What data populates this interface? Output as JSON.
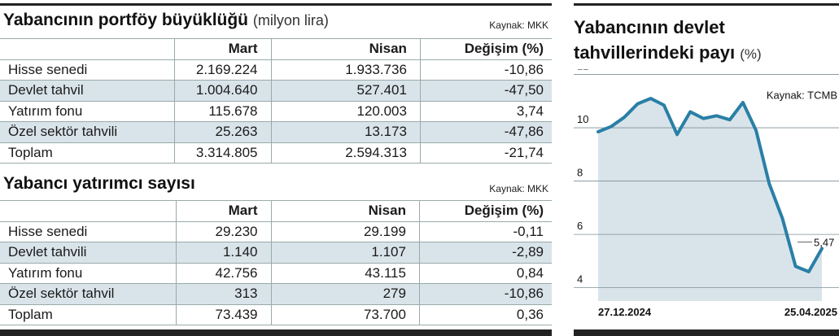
{
  "table1": {
    "title": "Yabancının portföy büyüklüğü",
    "subtitle": "(milyon lira)",
    "source": "Kaynak: MKK",
    "headers": [
      "",
      "Mart",
      "Nisan",
      "Değişim (%)"
    ],
    "rows": [
      [
        "Hisse senedi",
        "2.169.224",
        "1.933.736",
        "-10,86"
      ],
      [
        "Devlet tahvil",
        "1.004.640",
        "527.401",
        "-47,50"
      ],
      [
        "Yatırım fonu",
        "115.678",
        "120.003",
        "3,74"
      ],
      [
        "Özel sektör tahvili",
        "25.263",
        "13.173",
        "-47,86"
      ],
      [
        "Toplam",
        "3.314.805",
        "2.594.313",
        "-21,74"
      ]
    ]
  },
  "table2": {
    "title": "Yabancı yatırımcı sayısı",
    "source": "Kaynak: MKK",
    "headers": [
      "",
      "Mart",
      "Nisan",
      "Değişim (%)"
    ],
    "rows": [
      [
        "Hisse senedi",
        "29.230",
        "29.199",
        "-0,11"
      ],
      [
        "Devlet tahvili",
        "1.140",
        "1.107",
        "-2,89"
      ],
      [
        "Yatırım fonu",
        "42.756",
        "43.115",
        "0,84"
      ],
      [
        "Özel sektör tahvil",
        "313",
        "279",
        "-10,86"
      ],
      [
        "Toplam",
        "73.439",
        "73.700",
        "0,36"
      ]
    ]
  },
  "chart_data": {
    "type": "area",
    "title_line1": "Yabancının devlet",
    "title_line2": "tahvillerindeki payı",
    "unit": "(%)",
    "source": "Kaynak: TCMB",
    "x_start_label": "27.12.2024",
    "x_end_label": "25.04.2025",
    "yticks": [
      4,
      6,
      8,
      10,
      12
    ],
    "ylim": [
      3.5,
      12.2
    ],
    "last_label": "5,47",
    "y": [
      9.85,
      10.05,
      10.4,
      10.9,
      11.1,
      10.85,
      9.75,
      10.6,
      10.35,
      10.45,
      10.3,
      10.95,
      9.9,
      7.9,
      6.6,
      4.8,
      4.6,
      5.47
    ],
    "color_line": "#2a7fa6",
    "color_area": "#d9e4ea"
  }
}
